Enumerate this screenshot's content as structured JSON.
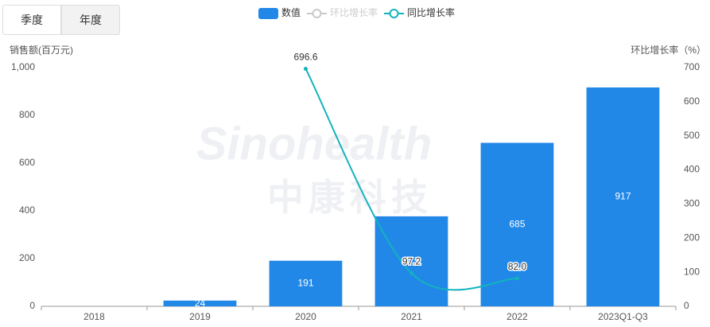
{
  "tabs": [
    "季度",
    "年度"
  ],
  "watermark": [
    "Sinohealth",
    "中康科技"
  ],
  "chart_data": {
    "type": "bar",
    "ylabel": "销售额(百万元)",
    "y2label": "环比增长率（%）",
    "categories": [
      "2018",
      "2019",
      "2020",
      "2021",
      "2022",
      "2023Q1-Q3"
    ],
    "series": [
      {
        "name": "数值",
        "type": "bar",
        "color": "#2288e8",
        "values": [
          null,
          24,
          191,
          377,
          685,
          917
        ]
      },
      {
        "name": "环比增长率",
        "type": "line",
        "color": "#c8c8c8",
        "axis": "y2",
        "hidden": true,
        "values": [
          null,
          null,
          null,
          null,
          null,
          null
        ]
      },
      {
        "name": "同比增长率",
        "type": "line",
        "color": "#12b3bd",
        "axis": "y2",
        "values": [
          null,
          null,
          696.6,
          97.2,
          82.0,
          null
        ],
        "value_labels": [
          null,
          null,
          "696.6",
          "97.2",
          "82.0",
          null
        ]
      }
    ],
    "ylim": [
      0,
      1000
    ],
    "yticks": [
      0,
      200,
      400,
      600,
      800,
      {
        "value": 1000,
        "label": "1,000"
      }
    ],
    "y2lim": [
      0,
      700
    ],
    "y2ticks": [
      0,
      100,
      200,
      300,
      400,
      500,
      600,
      700
    ]
  }
}
